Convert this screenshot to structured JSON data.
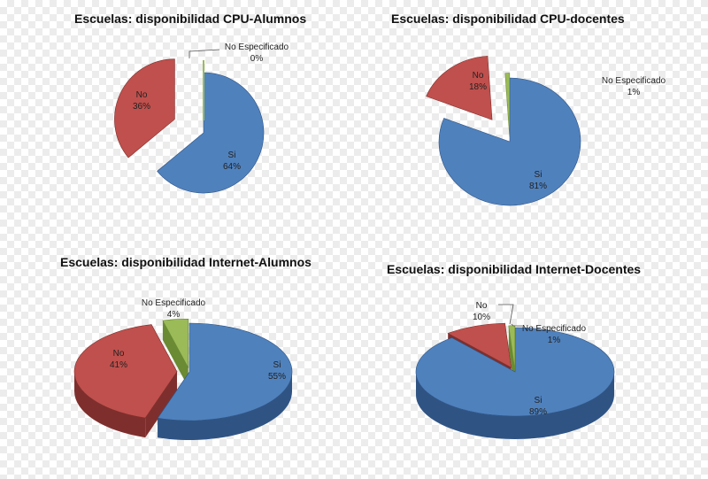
{
  "colors": {
    "si": "#4f81bd",
    "si_dark": "#2f5484",
    "no": "#c0504d",
    "no_dark": "#7e2f2d",
    "ne": "#9bbb59",
    "ne_dark": "#6a8a33"
  },
  "chart_data": [
    {
      "type": "pie",
      "title": "Escuelas: disponibilidad CPU-Alumnos",
      "slices": [
        {
          "name": "Si",
          "value": 64,
          "label": "64%"
        },
        {
          "name": "No",
          "value": 36,
          "label": "36%"
        },
        {
          "name": "No Especificado",
          "value": 0,
          "label": "0%"
        }
      ]
    },
    {
      "type": "pie",
      "title": "Escuelas: disponibilidad CPU-docentes",
      "slices": [
        {
          "name": "Si",
          "value": 81,
          "label": "81%"
        },
        {
          "name": "No",
          "value": 18,
          "label": "18%"
        },
        {
          "name": "No Especificado",
          "value": 1,
          "label": "1%"
        }
      ]
    },
    {
      "type": "pie",
      "title": "Escuelas: disponibilidad Internet-Alumnos",
      "slices": [
        {
          "name": "Si",
          "value": 55,
          "label": "55%"
        },
        {
          "name": "No",
          "value": 41,
          "label": "41%"
        },
        {
          "name": "No Especificado",
          "value": 4,
          "label": "4%"
        }
      ]
    },
    {
      "type": "pie",
      "title": "Escuelas: disponibilidad Internet-Docentes",
      "slices": [
        {
          "name": "Si",
          "value": 89,
          "label": "89%"
        },
        {
          "name": "No",
          "value": 10,
          "label": "10%"
        },
        {
          "name": "No Especificado",
          "value": 1,
          "label": "1%"
        }
      ]
    }
  ]
}
